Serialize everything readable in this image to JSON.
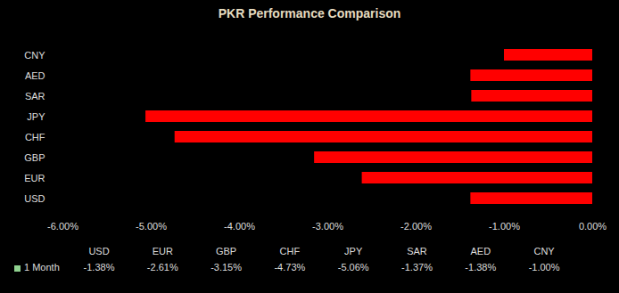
{
  "chart_data": {
    "type": "bar",
    "title": "PKR Performance Comparison",
    "orientation": "horizontal",
    "categories": [
      "USD",
      "EUR",
      "GBP",
      "CHF",
      "JPY",
      "SAR",
      "AED",
      "CNY"
    ],
    "series": [
      {
        "name": "1 Month",
        "color": "#ff0000",
        "values": [
          -1.38,
          -2.61,
          -3.15,
          -4.73,
          -5.06,
          -1.37,
          -1.38,
          -1.0
        ],
        "value_labels": [
          "-1.38%",
          "-2.61%",
          "-3.15%",
          "-4.73%",
          "-5.06%",
          "-1.37%",
          "-1.38%",
          "-1.00%"
        ]
      }
    ],
    "xlim": [
      -6,
      0
    ],
    "xticks": [
      {
        "value": -6,
        "label": "-6.00%"
      },
      {
        "value": -5,
        "label": "-5.00%"
      },
      {
        "value": -4,
        "label": "-4.00%"
      },
      {
        "value": -3,
        "label": "-3.00%"
      },
      {
        "value": -2,
        "label": "-2.00%"
      },
      {
        "value": -1,
        "label": "-1.00%"
      },
      {
        "value": 0,
        "label": "0.00%"
      }
    ],
    "grid": false
  }
}
